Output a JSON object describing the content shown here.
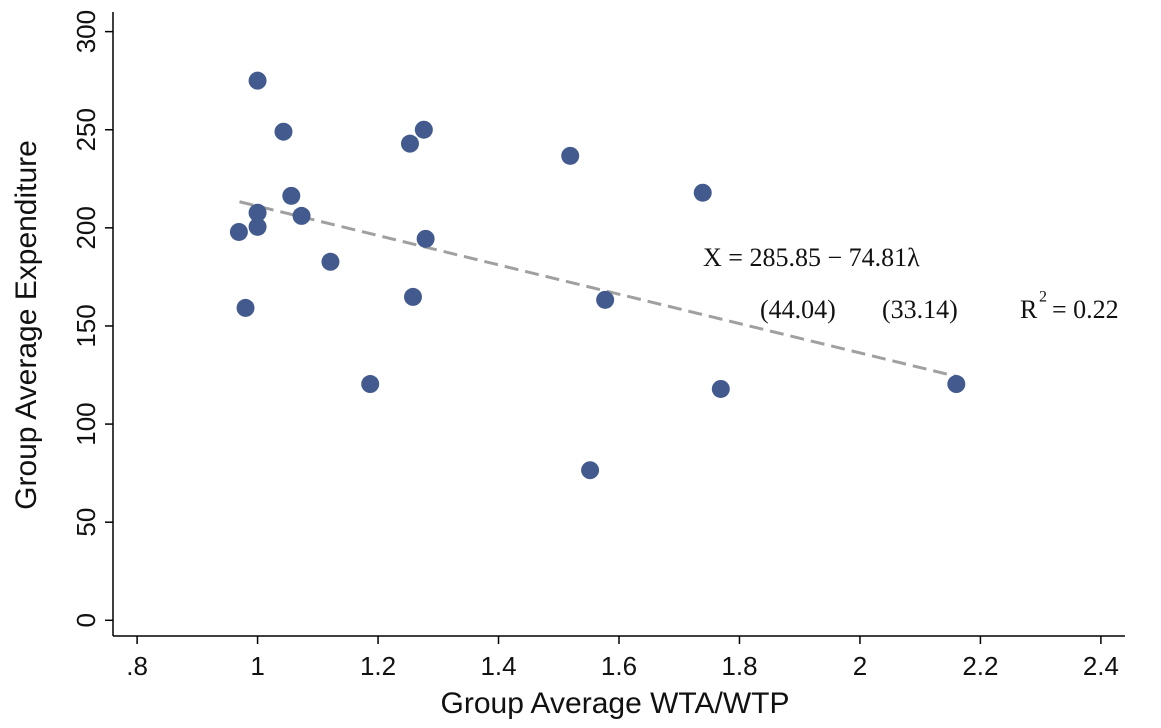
{
  "chart_data": {
    "type": "scatter",
    "x_label": "Group  Average  WTA/WTP",
    "y_label": "Group  Average Expenditure",
    "xlim": [
      0.76,
      2.44
    ],
    "ylim": [
      -8,
      310
    ],
    "xticks": [
      {
        "value": 0.8,
        "label": ".8"
      },
      1,
      1.2,
      1.4,
      1.6,
      1.8,
      2,
      2.2,
      2.4
    ],
    "yticks": [
      0,
      50,
      100,
      150,
      200,
      250,
      300
    ],
    "grid": false,
    "series": [
      {
        "color": "#425a8e",
        "x": [
          0.969,
          0.98,
          1.0,
          1.0,
          1.0,
          1.043,
          1.056,
          1.073,
          1.121,
          1.187,
          1.253,
          1.258,
          1.276,
          1.279,
          1.519,
          1.552,
          1.577,
          1.739,
          1.769,
          2.16
        ],
        "values": [
          197.9,
          159.2,
          275,
          207.7,
          200.5,
          249,
          216.3,
          206.1,
          182.7,
          120.4,
          242.9,
          164.8,
          250,
          194.4,
          236.7,
          76.5,
          163.3,
          217.9,
          117.9,
          120.4
        ]
      }
    ],
    "trendline": {
      "color": "#a0a0a0",
      "x": [
        0.97,
        2.16
      ],
      "values": [
        213.3,
        124.3
      ]
    },
    "annotations": [
      "X = 285.85 − 74.81λ",
      "(44.04)",
      "(33.14)",
      "R",
      "2",
      "= 0.22"
    ]
  }
}
